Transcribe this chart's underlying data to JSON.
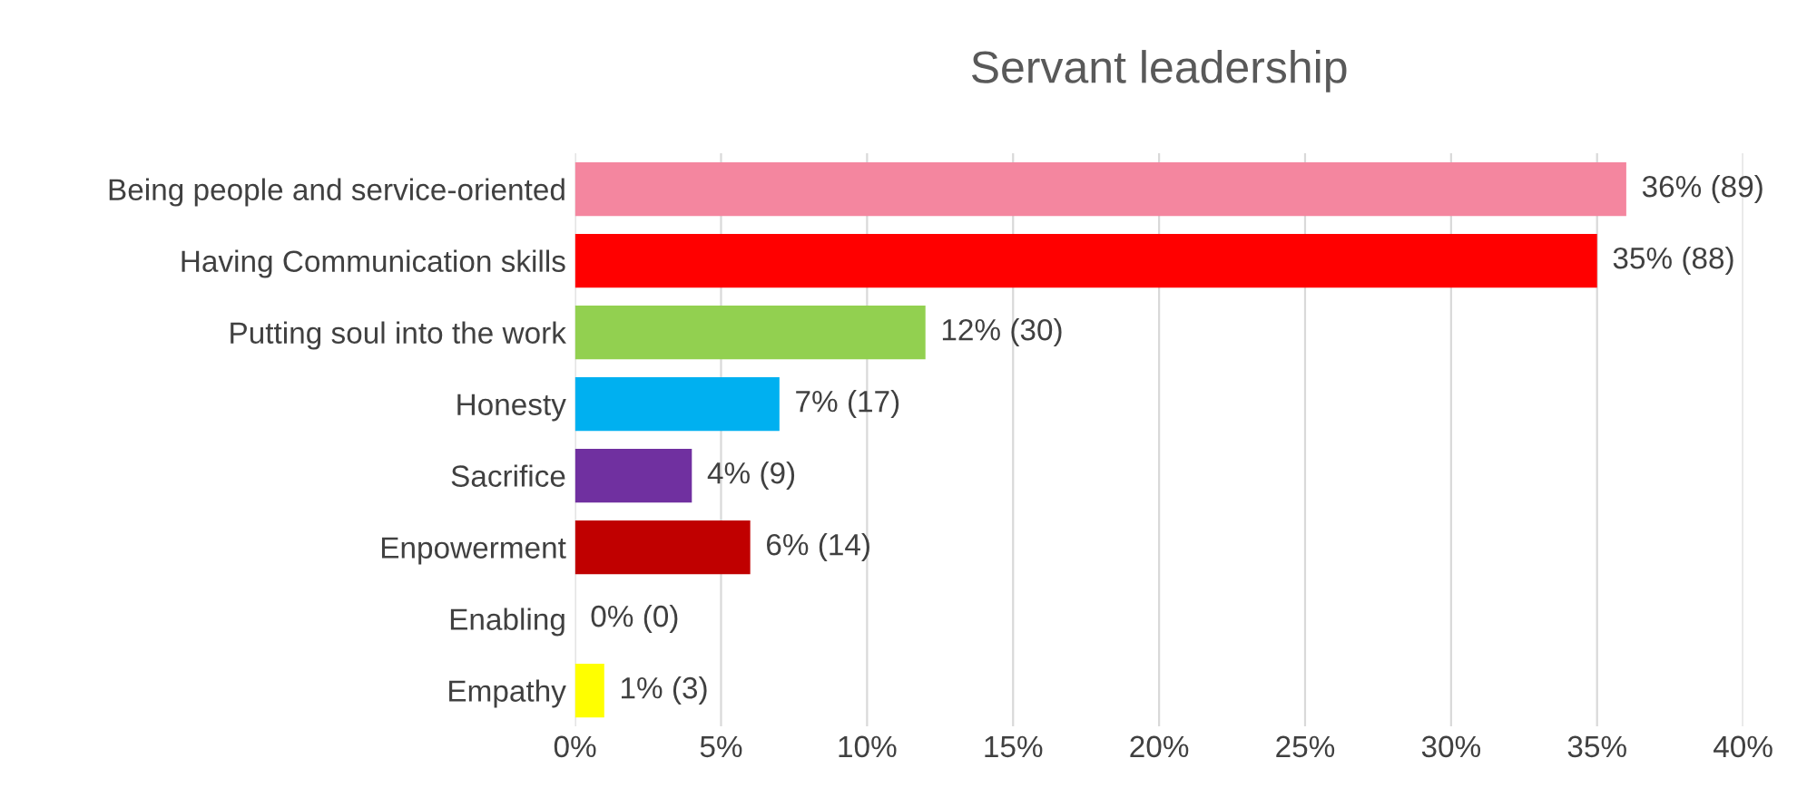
{
  "chart_data": {
    "type": "bar",
    "orientation": "horizontal",
    "title": "Servant leadership",
    "categories": [
      "Being people and service-oriented",
      "Having Communication skills",
      "Putting soul into the work",
      "Honesty",
      "Sacrifice",
      "Enpowerment",
      "Enabling",
      "Empathy"
    ],
    "values": [
      36,
      35,
      12,
      7,
      4,
      6,
      0,
      1
    ],
    "colors": [
      "#f4869f",
      "#ff0000",
      "#92d050",
      "#00b0f0",
      "#7030a0",
      "#c00000",
      "#ffc000",
      "#ffff00"
    ],
    "value_labels": [
      "36% (89)",
      "35% (88)",
      "12% (30)",
      "7% (17)",
      "4% (9)",
      "6% (14)",
      "0% (0)",
      "1% (3)"
    ],
    "xlim": [
      0,
      40
    ],
    "xticks": [
      {
        "value": 0,
        "label": "0%"
      },
      {
        "value": 5,
        "label": "5%"
      },
      {
        "value": 10,
        "label": "10%"
      },
      {
        "value": 15,
        "label": "15%"
      },
      {
        "value": 20,
        "label": "20%"
      },
      {
        "value": 25,
        "label": "25%"
      },
      {
        "value": 30,
        "label": "30%"
      },
      {
        "value": 35,
        "label": "35%"
      },
      {
        "value": 40,
        "label": "40%"
      }
    ],
    "grid": "x"
  }
}
